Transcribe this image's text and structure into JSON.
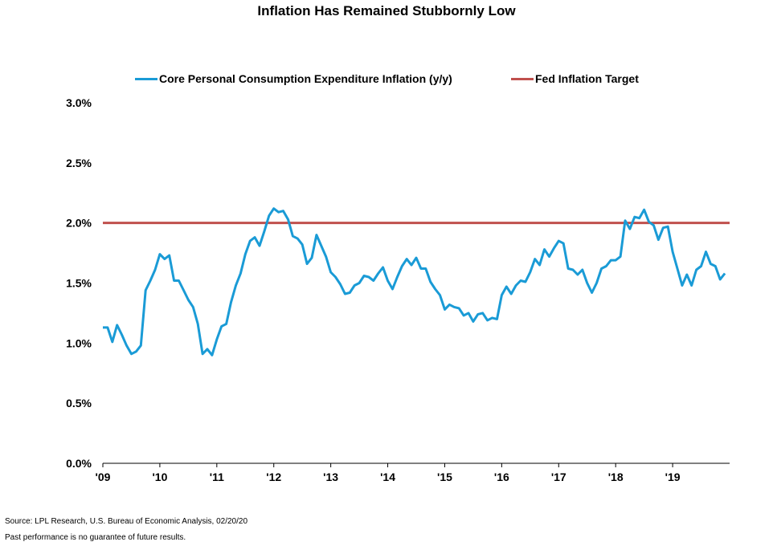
{
  "title": "Inflation Has Remained Stubbornly Low",
  "colors": {
    "pce": "#1a9bd6",
    "target": "#c0504d",
    "axis": "#000000"
  },
  "footnotes": {
    "source": "Source: LPL Research, U.S. Bureau of Economic Analysis, 02/20/20",
    "disclaimer": "Past performance is no guarantee of future results."
  },
  "chart_data": {
    "type": "line",
    "title": "Inflation Has Remained Stubbornly Low",
    "xlabel": "",
    "ylabel": "",
    "ylim": [
      0,
      3.0
    ],
    "y_ticks": [
      "0.0%",
      "0.5%",
      "1.0%",
      "1.5%",
      "2.0%",
      "2.5%",
      "3.0%"
    ],
    "x_ticks": [
      "'09",
      "'10",
      "'11",
      "'12",
      "'13",
      "'14",
      "'15",
      "'16",
      "'17",
      "'18",
      "'19"
    ],
    "x_range": [
      2009.0,
      2020.0
    ],
    "grid": false,
    "legend": "top",
    "series": [
      {
        "name": "Core Personal Consumption Expenditure Inflation (y/y)",
        "start": "2009-01",
        "frequency": "monthly",
        "values": [
          1.13,
          1.13,
          1.01,
          1.15,
          1.07,
          0.98,
          0.91,
          0.93,
          0.98,
          1.44,
          1.52,
          1.61,
          1.74,
          1.7,
          1.73,
          1.52,
          1.52,
          1.44,
          1.36,
          1.3,
          1.16,
          0.91,
          0.95,
          0.9,
          1.03,
          1.14,
          1.16,
          1.34,
          1.48,
          1.58,
          1.74,
          1.85,
          1.88,
          1.81,
          1.93,
          2.06,
          2.12,
          2.09,
          2.1,
          2.03,
          1.89,
          1.87,
          1.82,
          1.66,
          1.71,
          1.9,
          1.81,
          1.72,
          1.59,
          1.55,
          1.49,
          1.41,
          1.42,
          1.48,
          1.5,
          1.56,
          1.55,
          1.52,
          1.58,
          1.63,
          1.52,
          1.45,
          1.55,
          1.64,
          1.7,
          1.65,
          1.71,
          1.62,
          1.62,
          1.51,
          1.45,
          1.4,
          1.28,
          1.32,
          1.3,
          1.29,
          1.23,
          1.25,
          1.18,
          1.24,
          1.25,
          1.19,
          1.21,
          1.2,
          1.4,
          1.47,
          1.41,
          1.48,
          1.52,
          1.51,
          1.59,
          1.7,
          1.65,
          1.78,
          1.72,
          1.79,
          1.85,
          1.83,
          1.62,
          1.61,
          1.57,
          1.61,
          1.5,
          1.42,
          1.5,
          1.62,
          1.64,
          1.69,
          1.69,
          1.72,
          2.02,
          1.95,
          2.05,
          2.04,
          2.11,
          2.01,
          1.98,
          1.86,
          1.96,
          1.97,
          1.76,
          1.62,
          1.48,
          1.57,
          1.48,
          1.61,
          1.64,
          1.76,
          1.66,
          1.64,
          1.53,
          1.58
        ]
      },
      {
        "name": "Fed Inflation Target",
        "values": [
          2.0
        ]
      }
    ]
  }
}
